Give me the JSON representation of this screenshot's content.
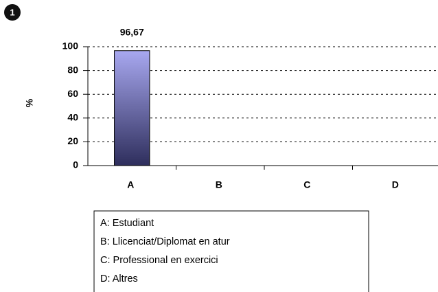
{
  "badge": "1",
  "chart_data": {
    "type": "bar",
    "y_label": "%",
    "categories": [
      "A",
      "B",
      "C",
      "D"
    ],
    "values": [
      96.67,
      0,
      0,
      0
    ],
    "value_labels": [
      "96,67",
      null,
      null,
      null
    ],
    "color": "#6a6ab8",
    "ylim": [
      0,
      100
    ],
    "yticks": [
      0,
      20,
      40,
      60,
      80,
      100
    ],
    "grid": true,
    "legend": [
      "A: Estudiant",
      "B: Llicenciat/Diplomat en atur",
      "C: Professional en exercici",
      "D: Altres"
    ]
  }
}
